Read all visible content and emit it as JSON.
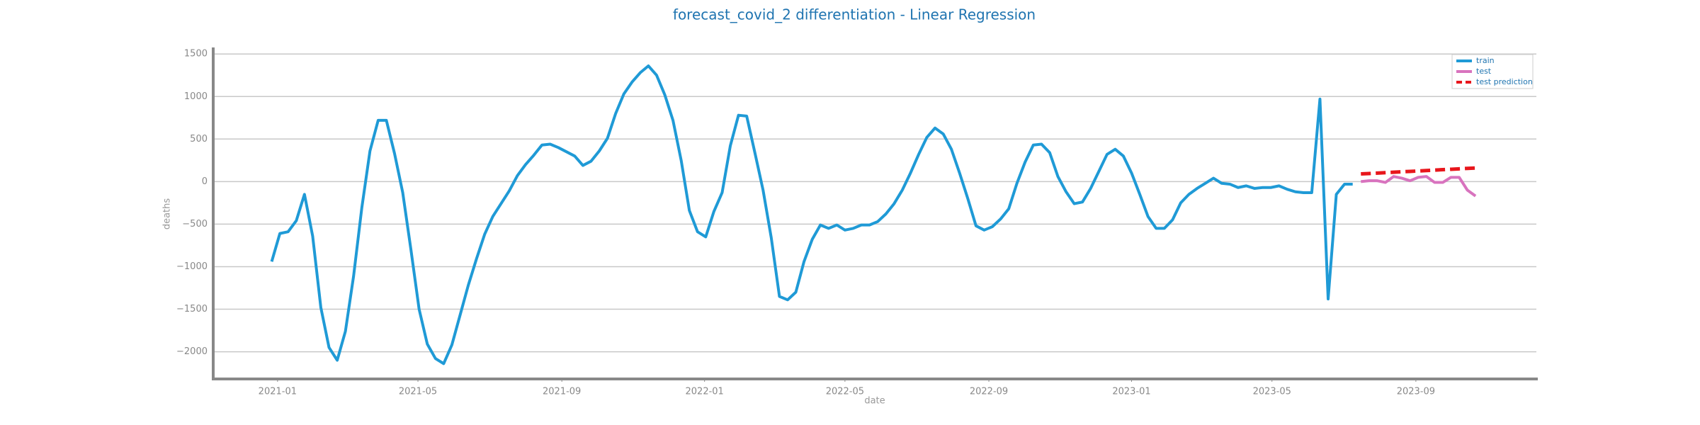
{
  "chart_data": {
    "type": "line",
    "title": "forecast_covid_2 differentiation - Linear Regression",
    "x_label": "date",
    "y_label": "deaths",
    "grid": true,
    "legend": "upper right",
    "xlim": [
      "2020-11-07",
      "2023-12-13"
    ],
    "xticks": [
      {
        "value": "2021-01-01",
        "label": "2021-01"
      },
      {
        "value": "2021-05-01",
        "label": "2021-05"
      },
      {
        "value": "2021-09-01",
        "label": "2021-09"
      },
      {
        "value": "2022-01-01",
        "label": "2022-01"
      },
      {
        "value": "2022-05-01",
        "label": "2022-05"
      },
      {
        "value": "2022-09-01",
        "label": "2022-09"
      },
      {
        "value": "2023-01-01",
        "label": "2023-01"
      },
      {
        "value": "2023-05-01",
        "label": "2023-05"
      },
      {
        "value": "2023-09-01",
        "label": "2023-09"
      }
    ],
    "ylim": [
      -2320,
      1560
    ],
    "yticks": [
      {
        "value": -2000,
        "label": "−2000"
      },
      {
        "value": -1500,
        "label": "−1500"
      },
      {
        "value": -1000,
        "label": "−1000"
      },
      {
        "value": -500,
        "label": "−500"
      },
      0,
      500,
      1000,
      1500
    ],
    "series": [
      {
        "name": "train",
        "color": "#1f9ad6",
        "dash": false,
        "x": [
          "2020-12-27",
          "2021-01-03",
          "2021-01-10",
          "2021-01-17",
          "2021-01-24",
          "2021-01-31",
          "2021-02-07",
          "2021-02-14",
          "2021-02-21",
          "2021-02-28",
          "2021-03-07",
          "2021-03-14",
          "2021-03-21",
          "2021-03-28",
          "2021-04-04",
          "2021-04-11",
          "2021-04-18",
          "2021-04-25",
          "2021-05-02",
          "2021-05-09",
          "2021-05-16",
          "2021-05-23",
          "2021-05-30",
          "2021-06-06",
          "2021-06-13",
          "2021-06-20",
          "2021-06-27",
          "2021-07-04",
          "2021-07-11",
          "2021-07-18",
          "2021-07-25",
          "2021-08-01",
          "2021-08-08",
          "2021-08-15",
          "2021-08-22",
          "2021-08-29",
          "2021-09-05",
          "2021-09-12",
          "2021-09-19",
          "2021-09-26",
          "2021-10-03",
          "2021-10-10",
          "2021-10-17",
          "2021-10-24",
          "2021-10-31",
          "2021-11-07",
          "2021-11-14",
          "2021-11-21",
          "2021-11-28",
          "2021-12-05",
          "2021-12-12",
          "2021-12-19",
          "2021-12-26",
          "2022-01-02",
          "2022-01-09",
          "2022-01-16",
          "2022-01-23",
          "2022-01-30",
          "2022-02-06",
          "2022-02-13",
          "2022-02-20",
          "2022-02-27",
          "2022-03-06",
          "2022-03-13",
          "2022-03-20",
          "2022-03-27",
          "2022-04-03",
          "2022-04-10",
          "2022-04-17",
          "2022-04-24",
          "2022-05-01",
          "2022-05-08",
          "2022-05-15",
          "2022-05-22",
          "2022-05-29",
          "2022-06-05",
          "2022-06-12",
          "2022-06-19",
          "2022-06-26",
          "2022-07-03",
          "2022-07-10",
          "2022-07-17",
          "2022-07-24",
          "2022-07-31",
          "2022-08-07",
          "2022-08-14",
          "2022-08-21",
          "2022-08-28",
          "2022-09-04",
          "2022-09-11",
          "2022-09-18",
          "2022-09-25",
          "2022-10-02",
          "2022-10-09",
          "2022-10-16",
          "2022-10-23",
          "2022-10-30",
          "2022-11-06",
          "2022-11-13",
          "2022-11-20",
          "2022-11-27",
          "2022-12-04",
          "2022-12-11",
          "2022-12-18",
          "2022-12-25",
          "2023-01-01",
          "2023-01-08",
          "2023-01-15",
          "2023-01-22",
          "2023-01-29",
          "2023-02-05",
          "2023-02-12",
          "2023-02-19",
          "2023-02-26",
          "2023-03-05",
          "2023-03-12",
          "2023-03-19",
          "2023-03-26",
          "2023-04-02",
          "2023-04-09",
          "2023-04-16",
          "2023-04-23",
          "2023-04-30",
          "2023-05-07",
          "2023-05-14",
          "2023-05-21",
          "2023-05-28",
          "2023-06-04",
          "2023-06-11",
          "2023-06-18",
          "2023-06-25",
          "2023-07-02",
          "2023-07-09"
        ],
        "values": [
          -940,
          -610,
          -590,
          -460,
          -150,
          -640,
          -1480,
          -1950,
          -2100,
          -1760,
          -1110,
          -310,
          360,
          720,
          720,
          330,
          -130,
          -800,
          -1500,
          -1910,
          -2080,
          -2140,
          -1920,
          -1570,
          -1220,
          -910,
          -620,
          -410,
          -260,
          -110,
          70,
          200,
          310,
          430,
          440,
          400,
          350,
          300,
          190,
          240,
          360,
          510,
          800,
          1030,
          1170,
          1280,
          1360,
          1250,
          1020,
          720,
          250,
          -340,
          -590,
          -650,
          -350,
          -130,
          420,
          780,
          770,
          340,
          -100,
          -660,
          -1350,
          -1390,
          -1300,
          -940,
          -680,
          -510,
          -550,
          -510,
          -570,
          -550,
          -510,
          -510,
          -470,
          -380,
          -260,
          -100,
          100,
          320,
          520,
          630,
          560,
          380,
          100,
          -200,
          -520,
          -570,
          -530,
          -440,
          -320,
          -20,
          230,
          430,
          440,
          340,
          60,
          -120,
          -260,
          -240,
          -80,
          120,
          320,
          380,
          300,
          100,
          -150,
          -410,
          -550,
          -550,
          -450,
          -250,
          -150,
          -80,
          -20,
          40,
          -20,
          -30,
          -70,
          -50,
          -80,
          -70,
          -70,
          -50,
          -90,
          -120,
          -130,
          -130,
          970,
          -1380,
          -150,
          -30,
          -30
        ]
      },
      {
        "name": "test",
        "color": "#d873be",
        "dash": false,
        "x": [
          "2023-07-16",
          "2023-07-23",
          "2023-07-30",
          "2023-08-06",
          "2023-08-13",
          "2023-08-20",
          "2023-08-27",
          "2023-09-03",
          "2023-09-10",
          "2023-09-17",
          "2023-09-24",
          "2023-10-01",
          "2023-10-08",
          "2023-10-15",
          "2023-10-22"
        ],
        "values": [
          0,
          10,
          10,
          -10,
          60,
          40,
          10,
          50,
          60,
          -10,
          -10,
          50,
          50,
          -100,
          -170
        ]
      },
      {
        "name": "test prediction",
        "color": "#e8161c",
        "dash": true,
        "x": [
          "2023-07-16",
          "2023-07-23",
          "2023-07-30",
          "2023-08-06",
          "2023-08-13",
          "2023-08-20",
          "2023-08-27",
          "2023-09-03",
          "2023-09-10",
          "2023-09-17",
          "2023-09-24",
          "2023-10-01",
          "2023-10-08",
          "2023-10-15",
          "2023-10-22"
        ],
        "values": [
          90,
          95,
          100,
          105,
          110,
          115,
          120,
          125,
          130,
          135,
          140,
          145,
          150,
          155,
          160
        ]
      }
    ]
  }
}
